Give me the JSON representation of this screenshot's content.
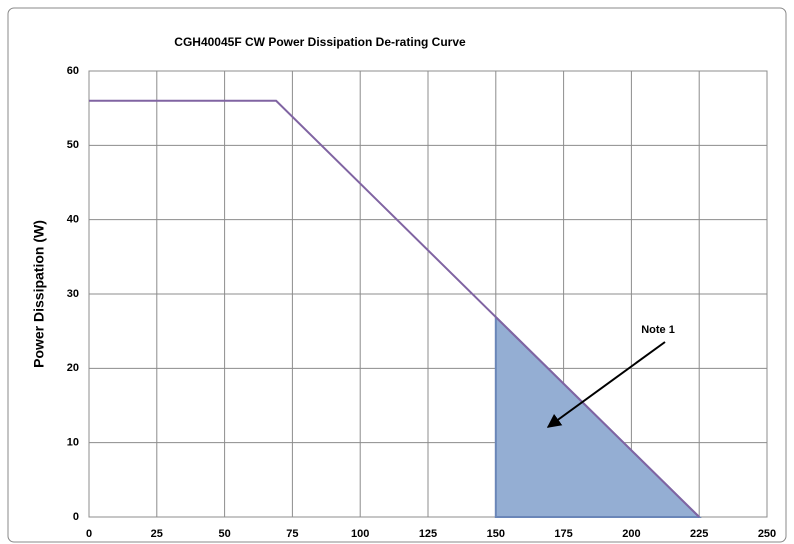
{
  "chart_data": {
    "type": "line",
    "title": "CGH40045F CW Power Dissipation De-rating Curve",
    "y_label": "Power Dissipation (W)",
    "series": [
      {
        "color": "#8064a2",
        "x": [
          0,
          69,
          150,
          225
        ],
        "values": [
          56,
          56,
          26.9,
          0
        ]
      }
    ],
    "shaded_region": {
      "color": "#94aed3",
      "edge_color": "#6a86b8",
      "x": [
        150,
        225
      ],
      "values": [
        26.9,
        0
      ]
    },
    "annotation": "Note 1",
    "xlim": [
      0,
      250
    ],
    "xticks": [
      0,
      25,
      50,
      75,
      100,
      125,
      150,
      175,
      200,
      225,
      250
    ],
    "ylim": [
      0,
      60
    ],
    "yticks": [
      0,
      10,
      20,
      30,
      40,
      50,
      60
    ],
    "grid": true
  }
}
